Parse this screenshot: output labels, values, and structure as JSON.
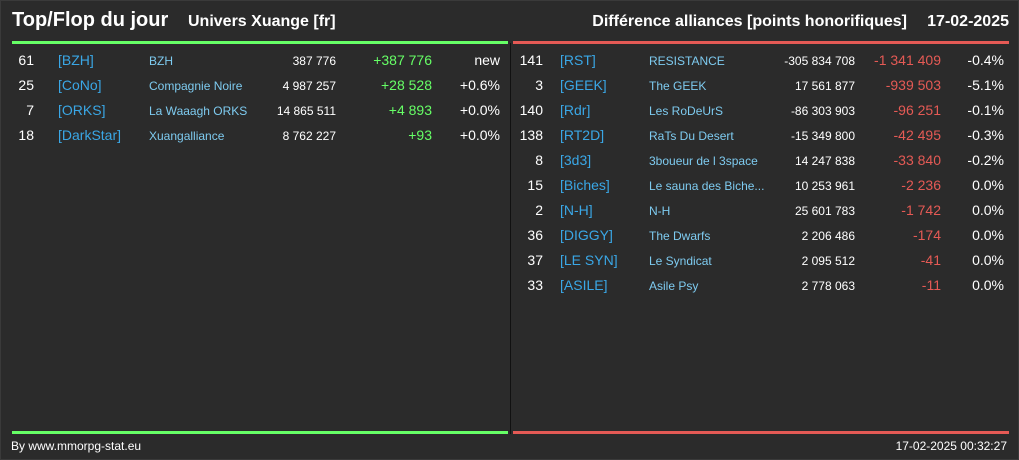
{
  "header": {
    "title": "Top/Flop du jour",
    "universe": "Univers Xuange [fr]",
    "metric": "Différence alliances [points honorifiques]",
    "date": "17-02-2025"
  },
  "colors": {
    "background": "#2b2b2b",
    "top_accent": "#66ff66",
    "flop_accent": "#e55a55",
    "tag": "#3aa7e6",
    "name": "#7ecbf0"
  },
  "top": [
    {
      "rank": "61",
      "tag": "[BZH]",
      "name": "BZH",
      "points": "387 776",
      "diff": "+387 776",
      "pct": "new"
    },
    {
      "rank": "25",
      "tag": "[CoNo]",
      "name": "Compagnie Noire",
      "points": "4 987 257",
      "diff": "+28 528",
      "pct": "+0.6%"
    },
    {
      "rank": "7",
      "tag": "[ORKS]",
      "name": "La Waaagh ORKS",
      "points": "14 865 511",
      "diff": "+4 893",
      "pct": "+0.0%"
    },
    {
      "rank": "18",
      "tag": "[DarkStar]",
      "name": "Xuangalliance",
      "points": "8 762 227",
      "diff": "+93",
      "pct": "+0.0%"
    }
  ],
  "flop": [
    {
      "rank": "141",
      "tag": "[RST]",
      "name": "RESISTANCE",
      "points": "-305 834 708",
      "diff": "-1 341 409",
      "pct": "-0.4%"
    },
    {
      "rank": "3",
      "tag": "[GEEK]",
      "name": "The GEEK",
      "points": "17 561 877",
      "diff": "-939 503",
      "pct": "-5.1%"
    },
    {
      "rank": "140",
      "tag": "[Rdr]",
      "name": "Les RoDeUrS",
      "points": "-86 303 903",
      "diff": "-96 251",
      "pct": "-0.1%"
    },
    {
      "rank": "138",
      "tag": "[RT2D]",
      "name": "RaTs Du Desert",
      "points": "-15 349 800",
      "diff": "-42 495",
      "pct": "-0.3%"
    },
    {
      "rank": "8",
      "tag": "[3d3]",
      "name": "3boueur de l 3space",
      "points": "14 247 838",
      "diff": "-33 840",
      "pct": "-0.2%"
    },
    {
      "rank": "15",
      "tag": "[Biches]",
      "name": "Le sauna des Biche...",
      "points": "10 253 961",
      "diff": "-2 236",
      "pct": "0.0%"
    },
    {
      "rank": "2",
      "tag": "[N-H]",
      "name": "N-H",
      "points": "25 601 783",
      "diff": "-1 742",
      "pct": "0.0%"
    },
    {
      "rank": "36",
      "tag": "[DIGGY]",
      "name": "The Dwarfs",
      "points": "2 206 486",
      "diff": "-174",
      "pct": "0.0%"
    },
    {
      "rank": "37",
      "tag": "[LE SYN]",
      "name": "Le Syndicat",
      "points": "2 095 512",
      "diff": "-41",
      "pct": "0.0%"
    },
    {
      "rank": "33",
      "tag": "[ASILE]",
      "name": "Asile Psy",
      "points": "2 778 063",
      "diff": "-11",
      "pct": "0.0%"
    }
  ],
  "footer": {
    "source": "By www.mmorpg-stat.eu",
    "timestamp": "17-02-2025 00:32:27"
  }
}
